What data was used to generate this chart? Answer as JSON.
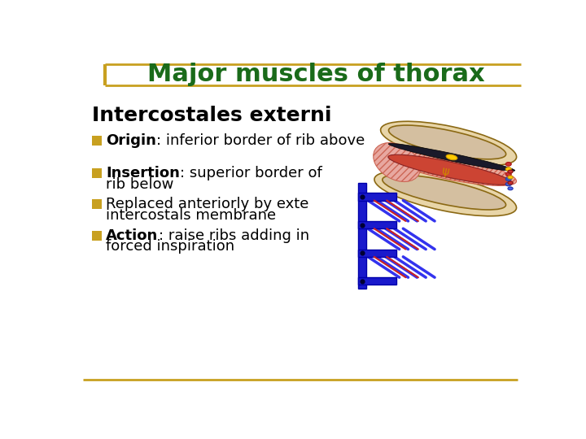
{
  "title": "Major muscles of thorax",
  "title_color": "#1a6b1a",
  "title_fontsize": 22,
  "bg_color": "#ffffff",
  "gold_color": "#c8a020",
  "section_title": "Intercostales externi",
  "section_title_fontsize": 18,
  "bullet_color": "#c8a020",
  "text_fontsize": 13,
  "body_text_color": "#000000",
  "bullet_points": [
    {
      "bold_text": "Origin",
      "rest_text": ": inferior border of rib above",
      "has_second_line": false,
      "second_line": ""
    },
    {
      "bold_text": "Insertion",
      "rest_text": ": superior border of",
      "has_second_line": true,
      "second_line": "rib below"
    },
    {
      "bold_text": "",
      "rest_text": "Replaced anteriorly by exte",
      "has_second_line": true,
      "second_line": "intercostals membrane"
    },
    {
      "bold_text": "Action",
      "rest_text": ": raise ribs adding in",
      "has_second_line": true,
      "second_line": "forced inspiration"
    }
  ]
}
